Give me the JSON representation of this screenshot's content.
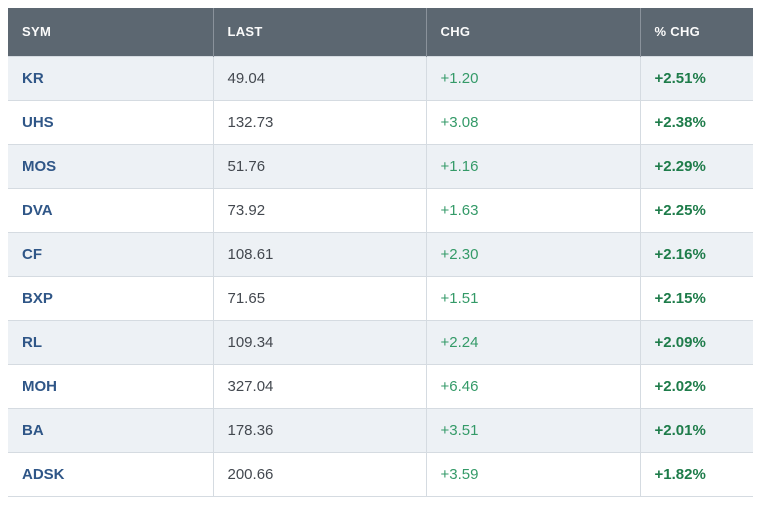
{
  "colors": {
    "header_bg": "#5c6771",
    "header_text": "#fbfbfb",
    "row_alt_bg": "#edf1f5",
    "row_bg": "#ffffff",
    "symbol_text": "#2f5687",
    "last_text": "#43484f",
    "chg_text": "#349a68",
    "pct_chg_text": "#1e7c4a",
    "border": "#d5dbe1"
  },
  "table": {
    "columns": [
      {
        "key": "sym",
        "label": "SYM"
      },
      {
        "key": "last",
        "label": "LAST"
      },
      {
        "key": "chg",
        "label": "CHG"
      },
      {
        "key": "pct",
        "label": "% CHG"
      }
    ],
    "rows": [
      {
        "sym": "KR",
        "last": "49.04",
        "chg": "+1.20",
        "pct": "+2.51%"
      },
      {
        "sym": "UHS",
        "last": "132.73",
        "chg": "+3.08",
        "pct": "+2.38%"
      },
      {
        "sym": "MOS",
        "last": "51.76",
        "chg": "+1.16",
        "pct": "+2.29%"
      },
      {
        "sym": "DVA",
        "last": "73.92",
        "chg": "+1.63",
        "pct": "+2.25%"
      },
      {
        "sym": "CF",
        "last": "108.61",
        "chg": "+2.30",
        "pct": "+2.16%"
      },
      {
        "sym": "BXP",
        "last": "71.65",
        "chg": "+1.51",
        "pct": "+2.15%"
      },
      {
        "sym": "RL",
        "last": "109.34",
        "chg": "+2.24",
        "pct": "+2.09%"
      },
      {
        "sym": "MOH",
        "last": "327.04",
        "chg": "+6.46",
        "pct": "+2.02%"
      },
      {
        "sym": "BA",
        "last": "178.36",
        "chg": "+3.51",
        "pct": "+2.01%"
      },
      {
        "sym": "ADSK",
        "last": "200.66",
        "chg": "+3.59",
        "pct": "+1.82%"
      }
    ]
  }
}
